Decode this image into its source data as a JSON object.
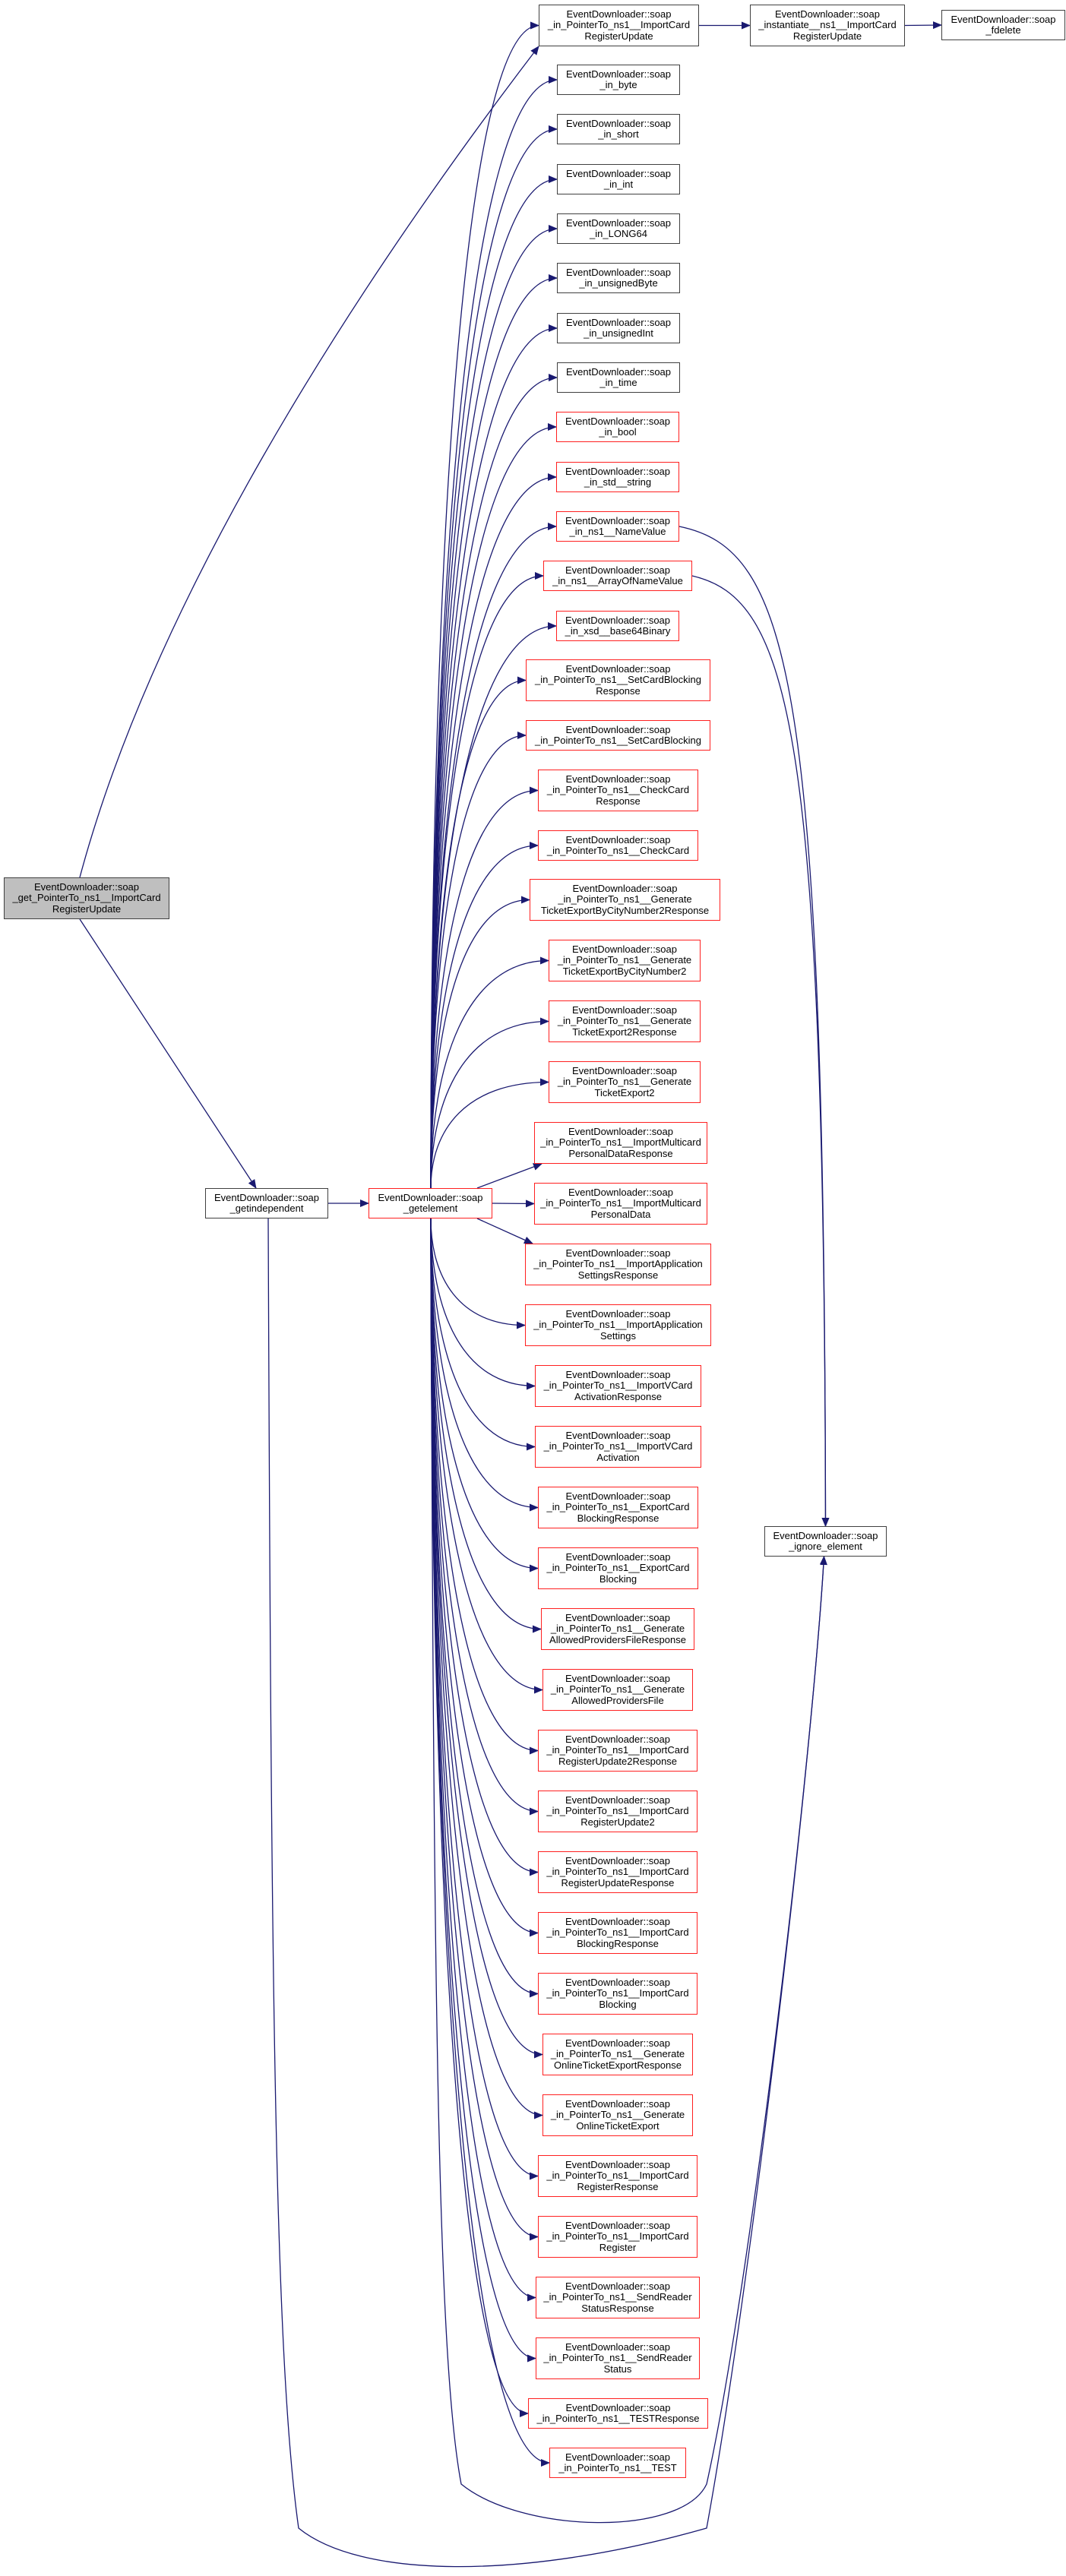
{
  "diagram": {
    "edge_color": "#191970",
    "highlight_fill": "#bfbfbf",
    "truncated_border_color": "#ff0000",
    "normal_border_color": "#404040"
  },
  "nodes": {
    "root": {
      "label": "EventDownloader::soap\n_get_PointerTo_ns1__ImportCard\nRegisterUpdate"
    },
    "getindependent": {
      "label": "EventDownloader::soap\n_getindependent"
    },
    "getelement": {
      "label": "EventDownloader::soap\n_getelement"
    },
    "ignore_element": {
      "label": "EventDownloader::soap\n_ignore_element"
    },
    "in_ptr_icru": {
      "label": "EventDownloader::soap\n_in_PointerTo_ns1__ImportCard\nRegisterUpdate"
    },
    "instantiate_icru": {
      "label": "EventDownloader::soap\n_instantiate__ns1__ImportCard\nRegisterUpdate"
    },
    "fdelete": {
      "label": "EventDownloader::soap\n_fdelete"
    },
    "in_byte": {
      "label": "EventDownloader::soap\n_in_byte"
    },
    "in_short": {
      "label": "EventDownloader::soap\n_in_short"
    },
    "in_int": {
      "label": "EventDownloader::soap\n_in_int"
    },
    "in_LONG64": {
      "label": "EventDownloader::soap\n_in_LONG64"
    },
    "in_unsignedByte": {
      "label": "EventDownloader::soap\n_in_unsignedByte"
    },
    "in_unsignedInt": {
      "label": "EventDownloader::soap\n_in_unsignedInt"
    },
    "in_time": {
      "label": "EventDownloader::soap\n_in_time"
    },
    "in_bool": {
      "label": "EventDownloader::soap\n_in_bool"
    },
    "in_std_string": {
      "label": "EventDownloader::soap\n_in_std__string"
    },
    "in_NameValue": {
      "label": "EventDownloader::soap\n_in_ns1__NameValue"
    },
    "in_ArrayOfNameValue": {
      "label": "EventDownloader::soap\n_in_ns1__ArrayOfNameValue"
    },
    "in_base64": {
      "label": "EventDownloader::soap\n_in_xsd__base64Binary"
    },
    "p_SCBResponse": {
      "label": "EventDownloader::soap\n_in_PointerTo_ns1__SetCardBlocking\nResponse"
    },
    "p_SCB": {
      "label": "EventDownloader::soap\n_in_PointerTo_ns1__SetCardBlocking"
    },
    "p_CCResponse": {
      "label": "EventDownloader::soap\n_in_PointerTo_ns1__CheckCard\nResponse"
    },
    "p_CC": {
      "label": "EventDownloader::soap\n_in_PointerTo_ns1__CheckCard"
    },
    "p_GTEBCN2Response": {
      "label": "EventDownloader::soap\n_in_PointerTo_ns1__Generate\nTicketExportByCityNumber2Response"
    },
    "p_GTEBCN2": {
      "label": "EventDownloader::soap\n_in_PointerTo_ns1__Generate\nTicketExportByCityNumber2"
    },
    "p_GTE2Response": {
      "label": "EventDownloader::soap\n_in_PointerTo_ns1__Generate\nTicketExport2Response"
    },
    "p_GTE2": {
      "label": "EventDownloader::soap\n_in_PointerTo_ns1__Generate\nTicketExport2"
    },
    "p_MPDResponse": {
      "label": "EventDownloader::soap\n_in_PointerTo_ns1__ImportMulticard\nPersonalDataResponse"
    },
    "p_MPD": {
      "label": "EventDownloader::soap\n_in_PointerTo_ns1__ImportMulticard\nPersonalData"
    },
    "p_IASResponse": {
      "label": "EventDownloader::soap\n_in_PointerTo_ns1__ImportApplication\nSettingsResponse"
    },
    "p_IAS": {
      "label": "EventDownloader::soap\n_in_PointerTo_ns1__ImportApplication\nSettings"
    },
    "p_IVAResponse": {
      "label": "EventDownloader::soap\n_in_PointerTo_ns1__ImportVCard\nActivationResponse"
    },
    "p_IVA": {
      "label": "EventDownloader::soap\n_in_PointerTo_ns1__ImportVCard\nActivation"
    },
    "p_ECBResponse": {
      "label": "EventDownloader::soap\n_in_PointerTo_ns1__ExportCard\nBlockingResponse"
    },
    "p_ECB": {
      "label": "EventDownloader::soap\n_in_PointerTo_ns1__ExportCard\nBlocking"
    },
    "p_GAPFResponse": {
      "label": "EventDownloader::soap\n_in_PointerTo_ns1__Generate\nAllowedProvidersFileResponse"
    },
    "p_GAPF": {
      "label": "EventDownloader::soap\n_in_PointerTo_ns1__Generate\nAllowedProvidersFile"
    },
    "p_ICRU2Response": {
      "label": "EventDownloader::soap\n_in_PointerTo_ns1__ImportCard\nRegisterUpdate2Response"
    },
    "p_ICRU2": {
      "label": "EventDownloader::soap\n_in_PointerTo_ns1__ImportCard\nRegisterUpdate2"
    },
    "p_ICRUResponse": {
      "label": "EventDownloader::soap\n_in_PointerTo_ns1__ImportCard\nRegisterUpdateResponse"
    },
    "p_ICBResponse": {
      "label": "EventDownloader::soap\n_in_PointerTo_ns1__ImportCard\nBlockingResponse"
    },
    "p_ICB": {
      "label": "EventDownloader::soap\n_in_PointerTo_ns1__ImportCard\nBlocking"
    },
    "p_GOTEResponse": {
      "label": "EventDownloader::soap\n_in_PointerTo_ns1__Generate\nOnlineTicketExportResponse"
    },
    "p_GOTE": {
      "label": "EventDownloader::soap\n_in_PointerTo_ns1__Generate\nOnlineTicketExport"
    },
    "p_ICRResponse": {
      "label": "EventDownloader::soap\n_in_PointerTo_ns1__ImportCard\nRegisterResponse"
    },
    "p_ICR": {
      "label": "EventDownloader::soap\n_in_PointerTo_ns1__ImportCard\nRegister"
    },
    "p_SRSResponse": {
      "label": "EventDownloader::soap\n_in_PointerTo_ns1__SendReader\nStatusResponse"
    },
    "p_SRS": {
      "label": "EventDownloader::soap\n_in_PointerTo_ns1__SendReader\nStatus"
    },
    "p_TESTResponse": {
      "label": "EventDownloader::soap\n_in_PointerTo_ns1__TESTResponse"
    },
    "p_TEST": {
      "label": "EventDownloader::soap\n_in_PointerTo_ns1__TEST"
    }
  },
  "calls": {
    "root": [
      "in_ptr_icru",
      "getindependent"
    ],
    "in_ptr_icru": [
      "instantiate_icru"
    ],
    "instantiate_icru": [
      "fdelete"
    ],
    "getindependent": [
      "getelement",
      "ignore_element"
    ],
    "getelement": [
      "in_ptr_icru",
      "in_byte",
      "in_short",
      "in_int",
      "in_LONG64",
      "in_unsignedByte",
      "in_unsignedInt",
      "in_time",
      "in_bool",
      "in_std_string",
      "in_NameValue",
      "in_ArrayOfNameValue",
      "in_base64",
      "p_SCBResponse",
      "p_SCB",
      "p_CCResponse",
      "p_CC",
      "p_GTEBCN2Response",
      "p_GTEBCN2",
      "p_GTE2Response",
      "p_GTE2",
      "p_MPDResponse",
      "p_MPD",
      "p_IASResponse",
      "p_IAS",
      "p_IVAResponse",
      "p_IVA",
      "p_ECBResponse",
      "p_ECB",
      "p_GAPFResponse",
      "p_GAPF",
      "p_ICRU2Response",
      "p_ICRU2",
      "p_ICRUResponse",
      "p_ICBResponse",
      "p_ICB",
      "p_GOTEResponse",
      "p_GOTE",
      "p_ICRResponse",
      "p_ICR",
      "p_SRSResponse",
      "p_SRS",
      "p_TESTResponse",
      "p_TEST",
      "ignore_element"
    ],
    "in_NameValue": [
      "ignore_element"
    ],
    "in_ArrayOfNameValue": [
      "ignore_element"
    ]
  }
}
